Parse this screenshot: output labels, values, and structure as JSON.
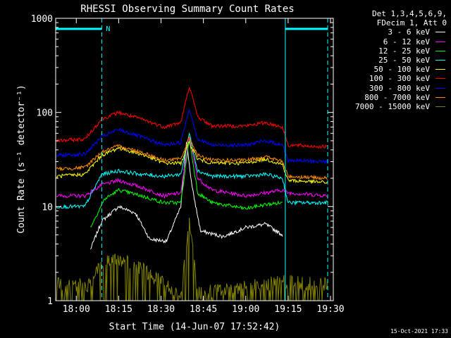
{
  "chart_data": {
    "type": "line",
    "title": "RHESSI Observing Summary Count Rates",
    "xlabel": "Start Time (14-Jun-07 17:52:42)",
    "ylabel": "Count Rate (s⁻¹ detector⁻¹)",
    "y_scale": "log",
    "ylim": [
      1,
      1000
    ],
    "xlim": [
      "17:52:42",
      "19:31:00"
    ],
    "x_tick_labels": [
      "18:00",
      "18:15",
      "18:30",
      "18:45",
      "19:00",
      "19:15",
      "19:30"
    ],
    "y_tick_labels": [
      "1",
      "10",
      "100",
      "1000"
    ],
    "legend_header": [
      "Det 1,3,4,5,6,9,",
      "FDecim 1, Att 0"
    ],
    "legend_position": "right",
    "grid": false,
    "annotations": [
      {
        "text": "N",
        "x": "18:09"
      }
    ],
    "night_markers": [
      "18:09",
      "19:14",
      "19:29"
    ],
    "series": [
      {
        "name": "3 - 6 keV",
        "color": "#ffffff",
        "x": [
          "18:05",
          "18:09",
          "18:15",
          "18:21",
          "18:26",
          "18:32",
          "18:37",
          "18:39",
          "18:41",
          "18:44",
          "18:52",
          "19:00",
          "19:07",
          "19:13"
        ],
        "values": [
          3.5,
          7,
          10,
          8.5,
          4.5,
          4.3,
          10,
          50,
          16,
          5.5,
          4.8,
          6,
          6.5,
          5
        ]
      },
      {
        "name": "6 - 12 keV",
        "color": "#ff00ff",
        "x": [
          "17:53",
          "18:03",
          "18:09",
          "18:15",
          "18:23",
          "18:31",
          "18:37",
          "18:40",
          "18:43",
          "18:48",
          "19:00",
          "19:07",
          "19:13",
          "19:15",
          "19:29"
        ],
        "values": [
          13,
          13,
          17,
          19,
          16,
          13,
          14,
          55,
          20,
          15,
          13,
          14,
          15,
          14,
          13
        ]
      },
      {
        "name": "12 - 25 keV",
        "color": "#00ff00",
        "x": [
          "18:05",
          "18:10",
          "18:15",
          "18:23",
          "18:31",
          "18:37",
          "18:40",
          "18:43",
          "18:48",
          "19:00",
          "19:07",
          "19:13"
        ],
        "values": [
          6,
          12,
          15,
          13,
          11,
          11,
          52,
          14,
          11,
          9.5,
          10.5,
          11
        ]
      },
      {
        "name": "25 - 50 keV",
        "color": "#00ffff",
        "x": [
          "17:53",
          "18:03",
          "18:09",
          "18:15",
          "18:23",
          "18:31",
          "18:37",
          "18:40",
          "18:43",
          "18:48",
          "19:00",
          "19:07",
          "19:13",
          "19:15",
          "19:29"
        ],
        "values": [
          10,
          10,
          22,
          24,
          22,
          21,
          22,
          60,
          24,
          21,
          21,
          22,
          20,
          11,
          11
        ]
      },
      {
        "name": "50 - 100 keV",
        "color": "#ffff00",
        "x": [
          "17:53",
          "18:03",
          "18:09",
          "18:15",
          "18:23",
          "18:31",
          "18:37",
          "18:40",
          "18:43",
          "18:48",
          "19:00",
          "19:07",
          "19:13",
          "19:15",
          "19:29"
        ],
        "values": [
          21,
          22,
          35,
          42,
          36,
          29,
          29,
          48,
          32,
          29,
          29,
          32,
          28,
          19,
          18
        ]
      },
      {
        "name": "100 - 300 keV",
        "color": "#ff0000",
        "x": [
          "17:53",
          "18:03",
          "18:09",
          "18:15",
          "18:23",
          "18:31",
          "18:37",
          "18:40",
          "18:43",
          "18:48",
          "19:00",
          "19:07",
          "19:13",
          "19:15",
          "19:29"
        ],
        "values": [
          50,
          52,
          85,
          100,
          85,
          70,
          78,
          190,
          90,
          72,
          72,
          78,
          70,
          45,
          43
        ]
      },
      {
        "name": "300 - 800 keV",
        "color": "#0000ff",
        "x": [
          "17:53",
          "18:03",
          "18:09",
          "18:15",
          "18:23",
          "18:31",
          "18:37",
          "18:40",
          "18:43",
          "18:48",
          "19:00",
          "19:07",
          "19:13",
          "19:15",
          "19:29"
        ],
        "values": [
          35,
          36,
          55,
          66,
          55,
          45,
          48,
          110,
          52,
          45,
          45,
          50,
          45,
          31,
          30
        ]
      },
      {
        "name": "800 - 7000 keV",
        "color": "#ff8c00",
        "x": [
          "17:53",
          "18:03",
          "18:09",
          "18:15",
          "18:23",
          "18:31",
          "18:37",
          "18:40",
          "18:43",
          "18:48",
          "19:00",
          "19:07",
          "19:13",
          "19:15",
          "19:29"
        ],
        "values": [
          25,
          26,
          38,
          44,
          38,
          31,
          32,
          54,
          35,
          31,
          31,
          34,
          30,
          21,
          20
        ]
      },
      {
        "name": "7000 - 15000 keV",
        "color": "#808000",
        "x": [
          "17:53",
          "18:05",
          "18:09",
          "18:15",
          "18:23",
          "18:37",
          "18:40",
          "18:43",
          "19:13",
          "19:29"
        ],
        "values": [
          1.5,
          1.5,
          2.5,
          2.8,
          2.2,
          1.2,
          7,
          1.2,
          1.6,
          1.5
        ]
      }
    ]
  },
  "footer": {
    "timestamp": "15-Oct-2021 17:33"
  }
}
